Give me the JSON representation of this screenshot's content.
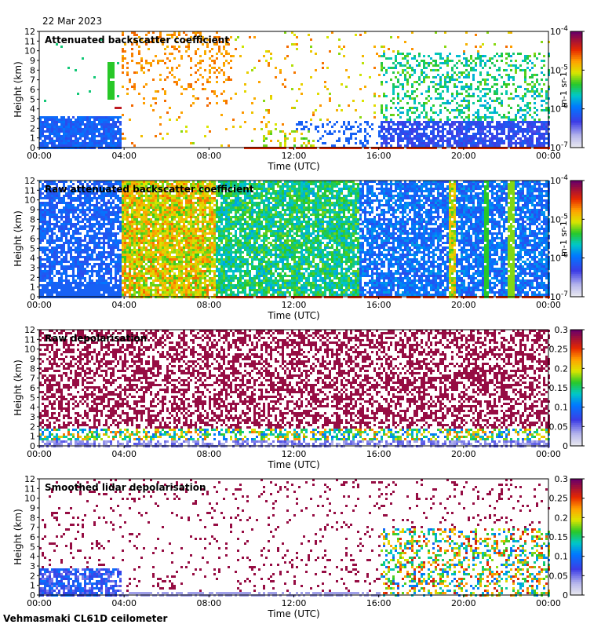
{
  "header": {
    "date": "22 Mar 2023"
  },
  "footer": {
    "text": "Vehmasmaki CL61D ceilometer"
  },
  "chart_data": [
    {
      "type": "heatmap",
      "title": "Attenuated backscatter coefficient",
      "xlabel": "Time (UTC)",
      "ylabel": "Height (km)",
      "x_ticks": [
        "00:00",
        "04:00",
        "08:00",
        "12:00",
        "16:00",
        "20:00",
        "00:00"
      ],
      "y_ticks": [
        0,
        1,
        2,
        3,
        4,
        5,
        6,
        7,
        8,
        9,
        10,
        11,
        12
      ],
      "ylim": [
        0,
        12
      ],
      "colorbar": {
        "scale": "log",
        "ticks": [
          "10^-7",
          "10^-6",
          "10^-5",
          "10^-4"
        ],
        "unit": "m-1 sr-1"
      },
      "features": [
        {
          "desc": "boundary layer",
          "t_start": 0,
          "t_end": 3.8,
          "top_km": 3.5,
          "level": 0.3
        },
        {
          "desc": "elevated layer",
          "t": 4.2,
          "height_km": 4.2,
          "level": 0.95
        },
        {
          "desc": "surface layer",
          "t_start": 9.5,
          "t_end": 24,
          "height_km": 0.2,
          "level": 0.9
        },
        {
          "desc": "convective cells",
          "t_start": 10.5,
          "t_end": 13,
          "top_km": 2,
          "level": 0.6
        },
        {
          "desc": "precipitation",
          "t_start": 16,
          "t_end": 24,
          "top_km": 10,
          "level": 0.5
        }
      ]
    },
    {
      "type": "heatmap",
      "title": "Raw attenuated backscatter coefficient",
      "xlabel": "Time (UTC)",
      "ylabel": "Height (km)",
      "x_ticks": [
        "00:00",
        "04:00",
        "08:00",
        "12:00",
        "16:00",
        "20:00",
        "00:00"
      ],
      "y_ticks": [
        0,
        1,
        2,
        3,
        4,
        5,
        6,
        7,
        8,
        9,
        10,
        11,
        12
      ],
      "ylim": [
        0,
        12
      ],
      "colorbar": {
        "scale": "log",
        "ticks": [
          "10^-7",
          "10^-6",
          "10^-5",
          "10^-4"
        ],
        "unit": "m-1 sr-1"
      },
      "features": [
        {
          "desc": "noisy background day",
          "t_start": 3.8,
          "t_end": 8.3,
          "level": 0.75
        },
        {
          "desc": "noisy background night",
          "t_start": 0,
          "t_end": 3.8,
          "level": 0.3
        },
        {
          "desc": "bands",
          "t": [
            19.3,
            21.0,
            22.1
          ],
          "level": 0.6
        }
      ]
    },
    {
      "type": "heatmap",
      "title": "Raw depolarisation",
      "xlabel": "Time (UTC)",
      "ylabel": "Height (km)",
      "x_ticks": [
        "00:00",
        "04:00",
        "08:00",
        "12:00",
        "16:00",
        "20:00",
        "00:00"
      ],
      "y_ticks": [
        0,
        1,
        2,
        3,
        4,
        5,
        6,
        7,
        8,
        9,
        10,
        11,
        12
      ],
      "ylim": [
        0,
        12
      ],
      "colorbar": {
        "scale": "linear",
        "ticks": [
          "0",
          "0.05",
          "0.1",
          "0.15",
          "0.2",
          "0.25",
          "0.3"
        ]
      },
      "features": [
        {
          "desc": "noise",
          "t_start": 0,
          "t_end": 24,
          "level": 0.9
        },
        {
          "desc": "low layer",
          "t_start": 0,
          "t_end": 24,
          "top_km": 1.5,
          "level": 0.15
        }
      ]
    },
    {
      "type": "heatmap",
      "title": "Smoothed lidar depolarisation",
      "xlabel": "Time (UTC)",
      "ylabel": "Height (km)",
      "x_ticks": [
        "00:00",
        "04:00",
        "08:00",
        "12:00",
        "16:00",
        "20:00",
        "00:00"
      ],
      "y_ticks": [
        0,
        1,
        2,
        3,
        4,
        5,
        6,
        7,
        8,
        9,
        10,
        11,
        12
      ],
      "ylim": [
        0,
        12
      ],
      "colorbar": {
        "scale": "linear",
        "ticks": [
          "0",
          "0.05",
          "0.1",
          "0.15",
          "0.2",
          "0.25",
          "0.3"
        ]
      },
      "features": [
        {
          "desc": "boundary layer",
          "t_start": 0,
          "t_end": 3.8,
          "top_km": 3,
          "level": 0.25
        },
        {
          "desc": "precipitation",
          "t_start": 16,
          "t_end": 24,
          "top_km": 7,
          "level": 0.6
        }
      ]
    }
  ]
}
